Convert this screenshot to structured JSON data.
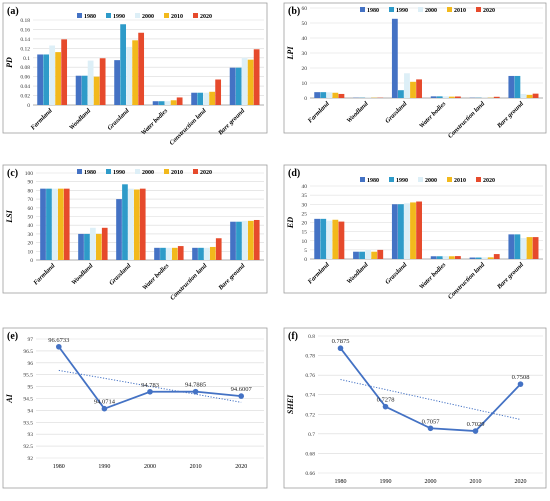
{
  "colors": {
    "series": [
      "#4472C4",
      "#2E9BC9",
      "#DDEFF7",
      "#F2B91C",
      "#E64A2C"
    ],
    "trend": "#4472C4",
    "grid": "#D9D9D9",
    "border": "#9E9E9E"
  },
  "chart_data": [
    {
      "panel": "(a)",
      "type": "bar",
      "ylabel": "PD",
      "categories": [
        "Farmland",
        "Woodland",
        "Grassland",
        "Water bodies",
        "Construction land",
        "Bare ground"
      ],
      "series": [
        {
          "name": "1980",
          "values": [
            0.107,
            0.062,
            0.095,
            0.008,
            0.026,
            0.079
          ]
        },
        {
          "name": "1990",
          "values": [
            0.107,
            0.062,
            0.171,
            0.008,
            0.026,
            0.079
          ]
        },
        {
          "name": "2000",
          "values": [
            0.126,
            0.094,
            0.123,
            0.008,
            0.026,
            0.1
          ]
        },
        {
          "name": "2010",
          "values": [
            0.112,
            0.06,
            0.137,
            0.01,
            0.028,
            0.096
          ]
        },
        {
          "name": "2020",
          "values": [
            0.139,
            0.099,
            0.153,
            0.016,
            0.054,
            0.118
          ]
        }
      ],
      "ylim": [
        0,
        0.18
      ],
      "yticks": [
        "0",
        "0.02",
        "0.04",
        "0.06",
        "0.08",
        "0.1",
        "0.12",
        "0.14",
        "0.16",
        "0.18"
      ],
      "legend": "top-right",
      "grid": true
    },
    {
      "panel": "(b)",
      "type": "bar",
      "ylabel": "LPI",
      "categories": [
        "Farmland",
        "Woodland",
        "Grassland",
        "Water bodies",
        "Construction land",
        "Bare ground"
      ],
      "series": [
        {
          "name": "1980",
          "values": [
            3.9,
            0.2,
            52.8,
            1.1,
            0.2,
            14.7
          ]
        },
        {
          "name": "1990",
          "values": [
            3.9,
            0.2,
            5.2,
            1.1,
            0.2,
            14.7
          ]
        },
        {
          "name": "2000",
          "values": [
            3.8,
            0.2,
            16.5,
            1.1,
            0.2,
            2.7
          ]
        },
        {
          "name": "2010",
          "values": [
            3.5,
            0.2,
            10.8,
            0.9,
            0.2,
            2.1
          ]
        },
        {
          "name": "2020",
          "values": [
            2.7,
            0.2,
            12.4,
            1.0,
            0.8,
            2.9
          ]
        }
      ],
      "ylim": [
        0,
        60
      ],
      "yticks": [
        "0",
        "10",
        "20",
        "30",
        "40",
        "50",
        "60"
      ],
      "legend": "top-right",
      "grid": true
    },
    {
      "panel": "(c)",
      "type": "bar",
      "ylabel": "LSI",
      "categories": [
        "Farmland",
        "Woodland",
        "Grassland",
        "Water bodies",
        "Construction land",
        "Bare ground"
      ],
      "series": [
        {
          "name": "1980",
          "values": [
            82,
            30,
            70,
            14,
            14,
            44
          ]
        },
        {
          "name": "1990",
          "values": [
            82,
            30,
            87,
            14,
            14,
            44
          ]
        },
        {
          "name": "2000",
          "values": [
            82,
            37,
            82,
            14,
            14,
            45
          ]
        },
        {
          "name": "2010",
          "values": [
            82,
            30,
            81,
            14,
            15,
            45
          ]
        },
        {
          "name": "2020",
          "values": [
            82,
            37,
            82,
            16,
            25,
            46
          ]
        }
      ],
      "ylim": [
        0,
        100
      ],
      "yticks": [
        "0",
        "10",
        "20",
        "30",
        "40",
        "50",
        "60",
        "70",
        "80",
        "90",
        "100"
      ],
      "legend": "top-right",
      "grid": true
    },
    {
      "panel": "(d)",
      "type": "bar",
      "ylabel": "ED",
      "categories": [
        "Farmland",
        "Woodland",
        "Grassland",
        "Water bodies",
        "Construction land",
        "Bare ground"
      ],
      "series": [
        {
          "name": "1980",
          "values": [
            22,
            4,
            30,
            1.5,
            0.8,
            13.5
          ]
        },
        {
          "name": "1990",
          "values": [
            22,
            4,
            30,
            1.5,
            0.8,
            13.5
          ]
        },
        {
          "name": "2000",
          "values": [
            21,
            5,
            30.5,
            1.6,
            0.9,
            11.5
          ]
        },
        {
          "name": "2010",
          "values": [
            21.5,
            4,
            31,
            1.5,
            0.9,
            12
          ]
        },
        {
          "name": "2020",
          "values": [
            20.5,
            5,
            31.5,
            1.6,
            2.7,
            12
          ]
        }
      ],
      "ylim": [
        0,
        40
      ],
      "yticks": [
        "0",
        "5",
        "10",
        "15",
        "20",
        "25",
        "30",
        "35",
        "40"
      ],
      "legend": "top-right",
      "grid": true
    },
    {
      "panel": "(e)",
      "type": "line",
      "ylabel": "AI",
      "x": [
        "1980",
        "1990",
        "2000",
        "2010",
        "2020"
      ],
      "values": [
        96.6733,
        94.0714,
        94.783,
        94.7885,
        94.6007
      ],
      "labels": [
        "96.6733",
        "94.0714",
        "94.783",
        "94.7885",
        "94.6007"
      ],
      "trend": [
        95.68,
        95.35,
        95.01,
        94.68,
        94.34
      ],
      "ylim": [
        92,
        97
      ],
      "yticks": [
        "92",
        "92.5",
        "93",
        "93.5",
        "94",
        "94.5",
        "95",
        "95.5",
        "96",
        "96.5",
        "97"
      ],
      "grid": true
    },
    {
      "panel": "(f)",
      "type": "line",
      "ylabel": "SHEI",
      "x": [
        "1980",
        "1990",
        "2000",
        "2010",
        "2020"
      ],
      "values": [
        0.7875,
        0.7278,
        0.7057,
        0.7029,
        0.7508
      ],
      "labels": [
        "0.7875",
        "0.7278",
        "0.7057",
        "0.7029",
        "0.7508"
      ],
      "trend": [
        0.7555,
        0.7453,
        0.7351,
        0.7249,
        0.7147
      ],
      "ylim": [
        0.66,
        0.8
      ],
      "yticks": [
        "0.66",
        "0.68",
        "0.7",
        "0.72",
        "0.74",
        "0.76",
        "0.78",
        "0.8"
      ],
      "grid": true
    }
  ]
}
